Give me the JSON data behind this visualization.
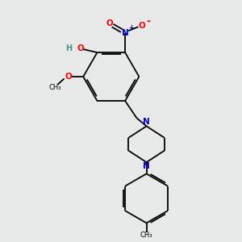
{
  "bg_color": "#e8eaea",
  "bond_color": "#000000",
  "atom_colors": {
    "O": "#ff0000",
    "N": "#0000cc",
    "H": "#4a9090",
    "C": "#000000"
  },
  "lw": 1.3
}
